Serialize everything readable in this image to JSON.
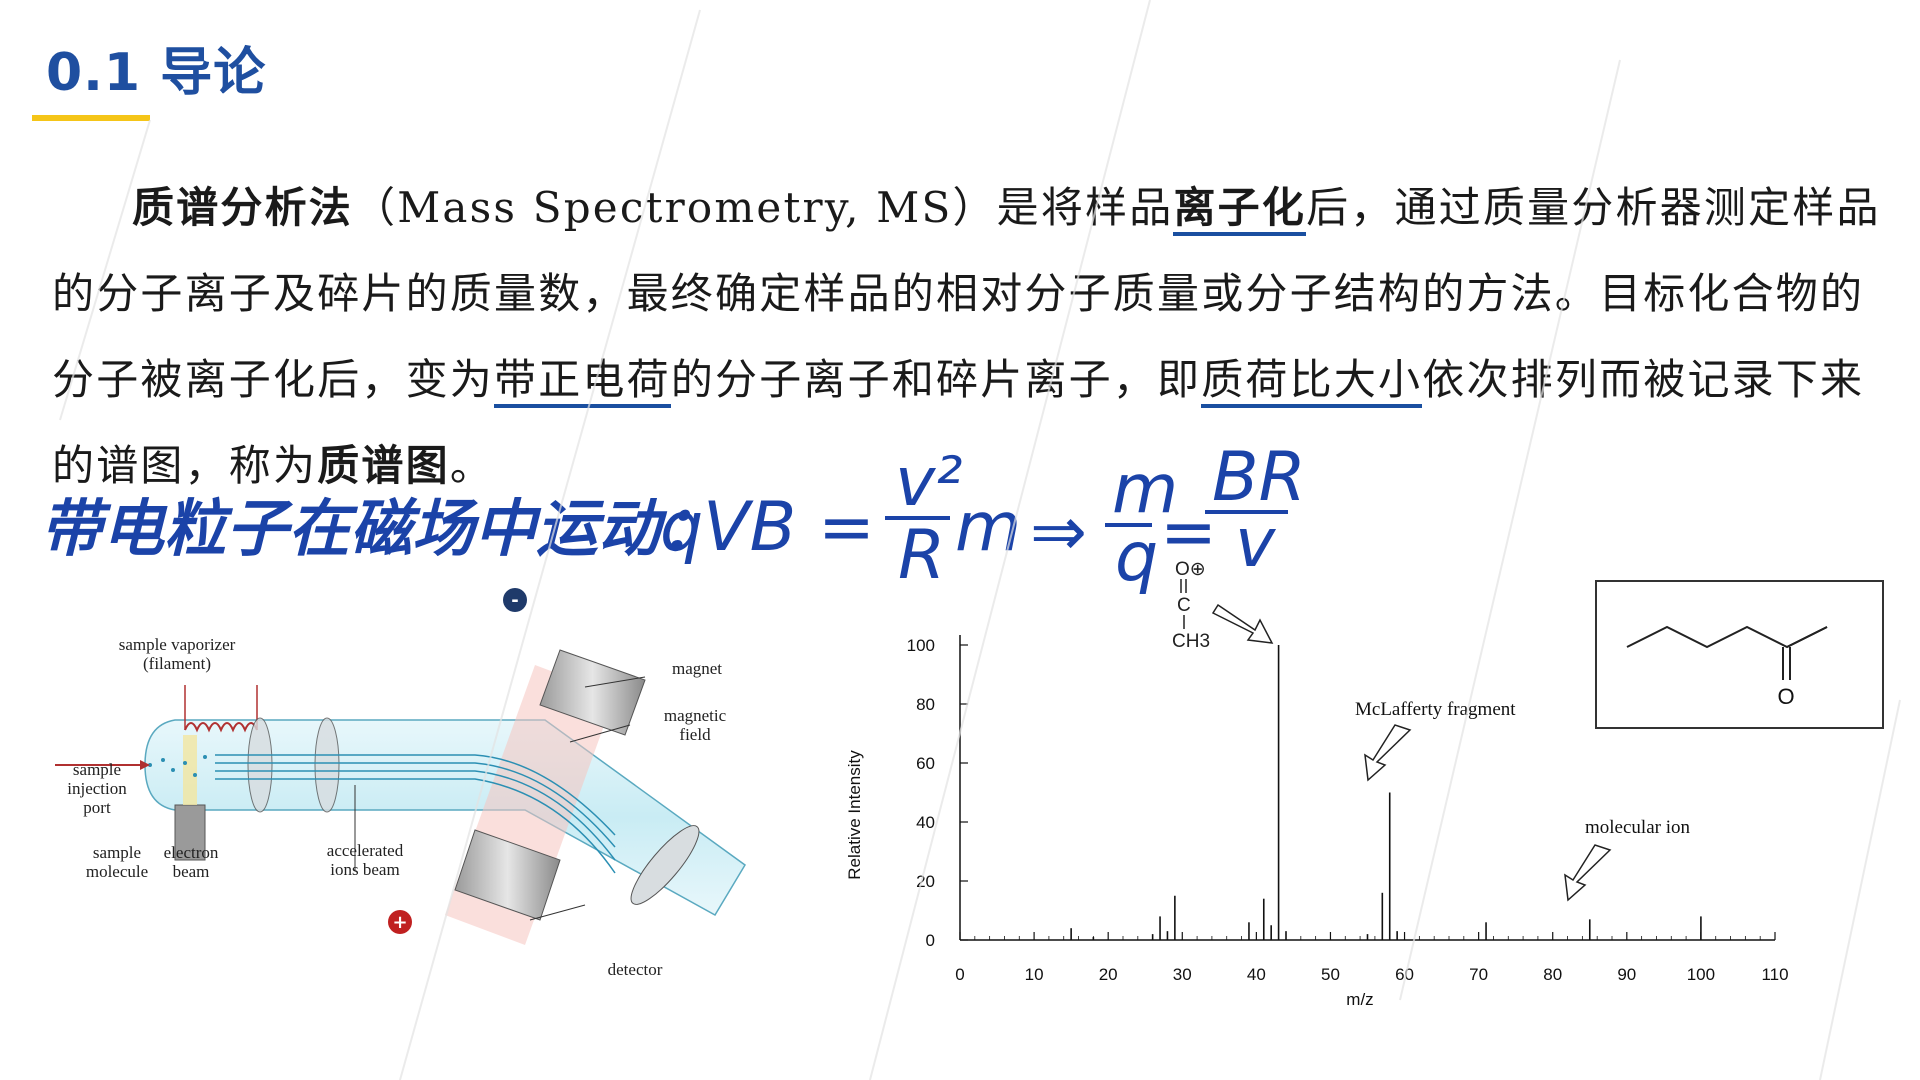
{
  "header": {
    "title": "0.1 导论"
  },
  "paragraph": {
    "term_ms": "质谱分析法",
    "part1": "（Mass Spectrometry, MS）是将样品",
    "term_ionize": "离子化",
    "part2": "后，通过质量分析器测定样品的分子离子及碎片的质量数，最终确定样品的相对分子质量或分子结构的方法。目标化合物的分子被离子化后，变为",
    "term_charge": "带正电荷",
    "part3": "的分子离子和碎片离子，即",
    "term_mz": "质荷比大小",
    "part4": "依次排列而被记录下来的谱图，称为",
    "term_spectrum": "质谱图",
    "part5": "。"
  },
  "handwriting": {
    "text": "带电粒子在磁场中运动：",
    "eq_lhs": "qVB =",
    "eq_frac1_num": "v²",
    "eq_frac1_den": "R",
    "eq_m": "m",
    "eq_arrow": "⇒",
    "eq_frac2_num": "m",
    "eq_frac2_den": "q",
    "eq_eq": "=",
    "eq_frac3_num": "BR",
    "eq_frac3_den": "v"
  },
  "instrument_diagram": {
    "labels": {
      "vaporizer": "sample vaporizer",
      "filament": "(filament)",
      "magnet": "magnet",
      "field1": "magnetic",
      "field2": "field",
      "port1": "sample",
      "port2": "injection",
      "port3": "port",
      "molecule1": "sample",
      "molecule2": "molecule",
      "electron1": "electron",
      "electron2": "beam",
      "accel1": "accelerated",
      "accel2": "ions beam",
      "detector": "detector",
      "minus": "-",
      "plus": "+"
    }
  },
  "structure": {
    "oxygen_label": "O"
  },
  "fragment": {
    "o_label": "O⊕",
    "c_label": "C",
    "ch3_label": "CH3"
  },
  "chart_data": {
    "type": "bar",
    "xlabel": "m/z",
    "ylabel": "Relative Intensity",
    "xlim": [
      0,
      110
    ],
    "ylim": [
      0,
      100
    ],
    "xticks": [
      0,
      10,
      20,
      30,
      40,
      50,
      60,
      70,
      80,
      90,
      100,
      110
    ],
    "yticks": [
      0,
      20,
      40,
      60,
      80,
      100
    ],
    "peaks": [
      {
        "x": 15,
        "y": 4
      },
      {
        "x": 18,
        "y": 1
      },
      {
        "x": 26,
        "y": 2
      },
      {
        "x": 27,
        "y": 8
      },
      {
        "x": 28,
        "y": 3
      },
      {
        "x": 29,
        "y": 15
      },
      {
        "x": 39,
        "y": 6
      },
      {
        "x": 41,
        "y": 14
      },
      {
        "x": 42,
        "y": 5
      },
      {
        "x": 43,
        "y": 100
      },
      {
        "x": 44,
        "y": 3
      },
      {
        "x": 55,
        "y": 2
      },
      {
        "x": 57,
        "y": 16
      },
      {
        "x": 58,
        "y": 50
      },
      {
        "x": 59,
        "y": 3
      },
      {
        "x": 71,
        "y": 6
      },
      {
        "x": 85,
        "y": 7
      },
      {
        "x": 100,
        "y": 8
      }
    ],
    "annotations": {
      "mclafferty": "McLafferty fragment",
      "molecular_ion": "molecular ion"
    }
  }
}
